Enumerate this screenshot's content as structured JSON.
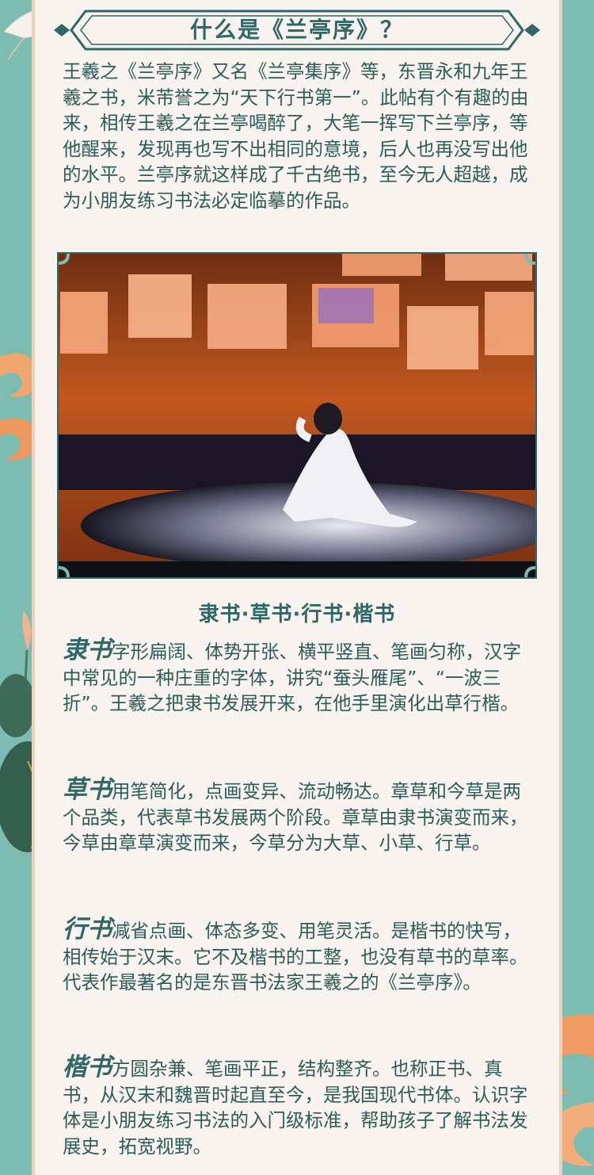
{
  "header": {
    "title": "什么是《兰亭序》？"
  },
  "intro": {
    "text": "王羲之《兰亭序》又名《兰亭集序》等，东晋永和九年王羲之书，米芾誉之为“天下行书第一”。此帖有个有趣的由来，相传王羲之在兰亭喝醉了，大笔一挥写下兰亭序，等他醒来，发现再也写不出相同的意境，后人也再没写出他的水平。兰亭序就这样成了千古绝书，至今无人超越，成为小朋友练习书法必定临摹的作品。"
  },
  "section": {
    "title": "隶书·草书·行书·楷书"
  },
  "styles": [
    {
      "term": "隶书",
      "desc": "字形扁阔、体势开张、横平竖直、笔画匀称，汉字中常见的一种庄重的字体，讲究“蚕头雁尾”、“一波三折”。王羲之把隶书发展开来，在他手里演化出草行楷。"
    },
    {
      "term": "草书",
      "desc": "用笔简化，点画变异、流动畅达。章草和今草是两个品类，代表草书发展两个阶段。章草由隶书演变而来，今草由章草演变而来，今草分为大草、小草、行草。"
    },
    {
      "term": "行书",
      "desc": "减省点画、体态多变、用笔灵活。是楷书的快写，相传始于汉末。它不及楷书的工整，也没有草书的草率。代表作最著名的是东晋书法家王羲之的《兰亭序》。"
    },
    {
      "term": "楷书",
      "desc": "方圆杂兼、笔画平正，结构整齐。也称正书、真书，从汉末和魏晋时起直至今，是我国现代书体。认识字体是小朋友练习书法的入门级标准，帮助孩子了解书法发展史，拓宽视野。"
    }
  ],
  "colors": {
    "background": "#7dbcb1",
    "panel": "#f8f3ee",
    "accent": "#2f6866",
    "text": "#2d5c5a"
  }
}
